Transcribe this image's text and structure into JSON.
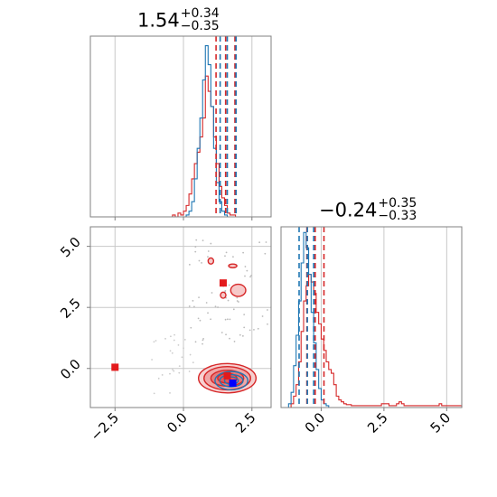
{
  "chart_data": [
    {
      "type": "histogram",
      "panel": "top-left",
      "title": {
        "value": "1.54",
        "plus": "+0.34",
        "minus": "−0.35"
      },
      "x_range": [
        -3.4,
        3.2
      ],
      "x_ticks": [
        -2.5,
        0.0,
        2.5
      ],
      "series": [
        {
          "color": "#d62728",
          "bins_start": -0.6,
          "bin_width": 0.1,
          "heights": [
            0,
            0,
            0.01,
            0,
            0.02,
            0.01,
            0.03,
            0.06,
            0.12,
            0.2,
            0.28,
            0.34,
            0.42,
            0.52,
            0.74,
            0.66,
            0.58,
            0.42,
            0.28,
            0.16,
            0.1,
            0.06,
            0.02,
            0.01,
            0.01
          ]
        },
        {
          "color": "#1f77b4",
          "bins_start": -0.6,
          "bin_width": 0.1,
          "heights": [
            0,
            0,
            0,
            0,
            0,
            0,
            0,
            0.01,
            0.03,
            0.08,
            0.2,
            0.36,
            0.52,
            0.72,
            0.9,
            0.8,
            0.58,
            0.36,
            0.18,
            0.08,
            0.03,
            0.01,
            0,
            0,
            0
          ]
        }
      ],
      "quantile_lines": [
        {
          "color": "#d62728",
          "x": [
            1.19,
            1.54,
            1.88
          ]
        },
        {
          "color": "#1f77b4",
          "x": [
            1.34,
            1.6,
            1.92
          ]
        }
      ]
    },
    {
      "type": "scatter-contour",
      "panel": "bottom-left",
      "x_range": [
        -3.4,
        3.2
      ],
      "y_range": [
        -1.6,
        5.8
      ],
      "x_ticks": [
        -2.5,
        0.0,
        2.5
      ],
      "x_tick_labels": [
        "−2.5",
        "0.0",
        "2.5"
      ],
      "y_ticks": [
        0.0,
        2.5,
        5.0
      ],
      "y_tick_labels": [
        "0.0",
        "2.5",
        "5.0"
      ],
      "red_contours": [
        {
          "cx": 1.6,
          "cy": -0.4,
          "rx": 2.1,
          "ry": 1.2
        },
        {
          "cx": 1.6,
          "cy": -0.4,
          "rx": 1.7,
          "ry": 0.95
        },
        {
          "cx": 1.6,
          "cy": -0.4,
          "rx": 1.2,
          "ry": 0.65
        },
        {
          "cx": 1.6,
          "cy": -0.4,
          "rx": 0.7,
          "ry": 0.4
        }
      ],
      "red_islands": [
        {
          "cx": 2.0,
          "cy": 3.2,
          "rx": 0.55,
          "ry": 0.5
        },
        {
          "cx": 1.45,
          "cy": 3.0,
          "rx": 0.2,
          "ry": 0.25
        },
        {
          "cx": 1.8,
          "cy": 4.2,
          "rx": 0.3,
          "ry": 0.15
        },
        {
          "cx": 1.0,
          "cy": 4.4,
          "rx": 0.2,
          "ry": 0.25
        }
      ],
      "blue_contours": [
        {
          "cx": 1.75,
          "cy": -0.5,
          "rx": 1.2,
          "ry": 0.75
        },
        {
          "cx": 1.75,
          "cy": -0.5,
          "rx": 0.85,
          "ry": 0.5
        },
        {
          "cx": 1.75,
          "cy": -0.5,
          "rx": 0.5,
          "ry": 0.3
        }
      ],
      "markers": [
        {
          "color": "#e31a1c",
          "x": -2.5,
          "y": 0.05
        },
        {
          "color": "#e31a1c",
          "x": 1.45,
          "y": 3.5
        },
        {
          "color": "#e31a1c",
          "x": 1.6,
          "y": -0.3
        },
        {
          "color": "#0000ff",
          "x": 1.8,
          "y": -0.6
        }
      ]
    },
    {
      "type": "histogram",
      "panel": "bottom-right",
      "title": {
        "value": "−0.24",
        "plus": "+0.35",
        "minus": "−0.33"
      },
      "x_range": [
        -1.6,
        5.6
      ],
      "x_ticks": [
        0.0,
        2.5,
        5.0
      ],
      "x_tick_labels": [
        "0.0",
        "2.5",
        "5.0"
      ],
      "series": [
        {
          "color": "#d62728",
          "bins_start": -1.6,
          "bin_width": 0.1,
          "heights": [
            0,
            0,
            0,
            0,
            0.02,
            0.06,
            0.12,
            0.24,
            0.4,
            0.56,
            0.64,
            0.7,
            0.66,
            0.6,
            0.5,
            0.44,
            0.36,
            0.3,
            0.24,
            0.2,
            0.18,
            0.12,
            0.06,
            0.04,
            0.03,
            0.02,
            0.015,
            0.015,
            0.01,
            0.01,
            0.01,
            0.01,
            0.01,
            0.01,
            0.01,
            0.01,
            0.01,
            0.01,
            0.01,
            0.01,
            0.02,
            0.02,
            0.02,
            0.01,
            0.01,
            0.01,
            0.02,
            0.03,
            0.02,
            0.01,
            0.01,
            0.01,
            0.01,
            0.01,
            0.01,
            0.01,
            0.01,
            0.01,
            0.01,
            0.01,
            0.01,
            0.01,
            0.01,
            0.02,
            0.01,
            0.01,
            0.01,
            0.01,
            0.01,
            0.01,
            0.01,
            0.01
          ]
        },
        {
          "color": "#1f77b4",
          "bins_start": -1.6,
          "bin_width": 0.1,
          "heights": [
            0,
            0,
            0,
            0.02,
            0.08,
            0.22,
            0.38,
            0.56,
            0.76,
            0.92,
            0.84,
            0.7,
            0.5,
            0.34,
            0.2,
            0.1,
            0.04,
            0.02,
            0.01,
            0,
            0,
            0,
            0,
            0,
            0,
            0,
            0,
            0,
            0,
            0,
            0,
            0,
            0,
            0,
            0,
            0,
            0,
            0,
            0,
            0,
            0,
            0,
            0,
            0,
            0,
            0,
            0,
            0,
            0,
            0,
            0,
            0,
            0,
            0,
            0,
            0,
            0,
            0,
            0,
            0,
            0,
            0,
            0,
            0,
            0,
            0,
            0,
            0,
            0,
            0,
            0,
            0
          ]
        }
      ],
      "quantile_lines": [
        {
          "color": "#d62728",
          "x": [
            -0.57,
            -0.24,
            0.11
          ]
        },
        {
          "color": "#1f77b4",
          "x": [
            -0.88,
            -0.55,
            -0.3
          ]
        }
      ]
    }
  ]
}
